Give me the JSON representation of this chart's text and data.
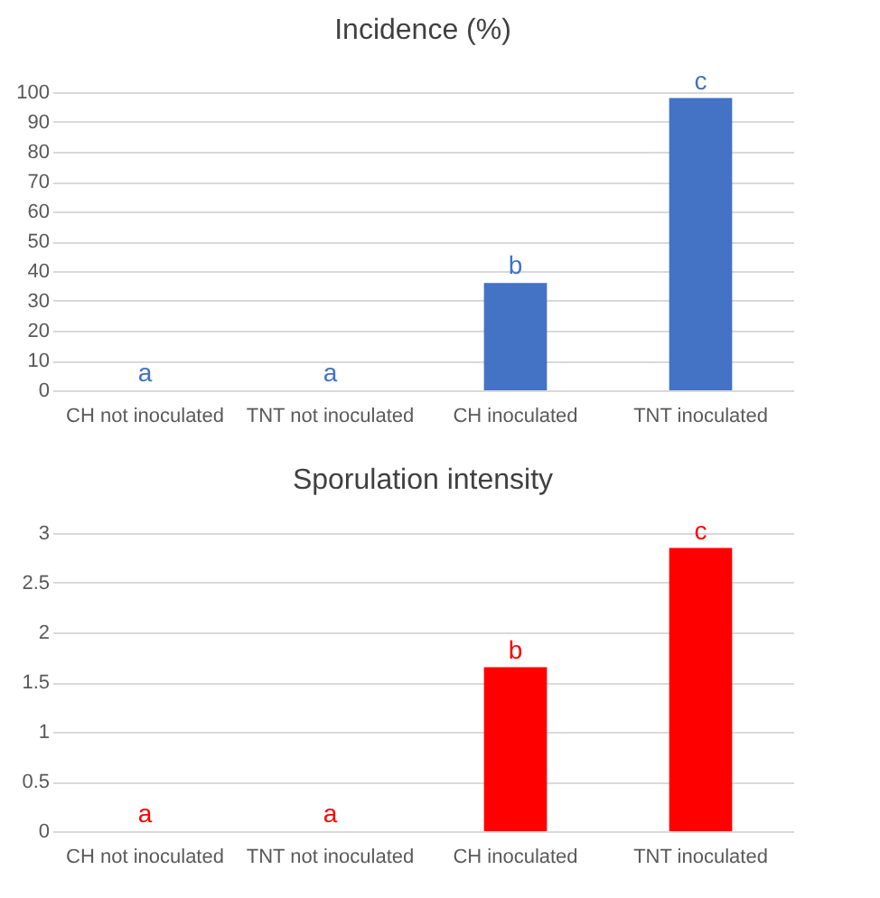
{
  "chart_data": [
    {
      "type": "bar",
      "title": "Incidence (%)",
      "categories": [
        "CH not inoculated",
        "TNT not inoculated",
        "CH inoculated",
        "TNT inoculated"
      ],
      "values": [
        0,
        0,
        36,
        98
      ],
      "color": "#4472c4",
      "ylim": [
        0,
        100
      ],
      "yticks": [
        0,
        10,
        20,
        30,
        40,
        50,
        60,
        70,
        80,
        90,
        100
      ],
      "grid": "y",
      "annotations": [
        {
          "text": "a",
          "x": "CH not inoculated",
          "y": 0
        },
        {
          "text": "a",
          "x": "TNT not inoculated",
          "y": 0
        },
        {
          "text": "b",
          "x": "CH inoculated",
          "y": 36
        },
        {
          "text": "c",
          "x": "TNT inoculated",
          "y": 98
        }
      ]
    },
    {
      "type": "bar",
      "title": "Sporulation intensity",
      "categories": [
        "CH not inoculated",
        "TNT not inoculated",
        "CH inoculated",
        "TNT inoculated"
      ],
      "values": [
        0,
        0,
        1.65,
        2.85
      ],
      "color": "#ff0000",
      "ylim": [
        0,
        3
      ],
      "yticks": [
        0,
        0.5,
        1,
        1.5,
        2,
        2.5,
        3
      ],
      "grid": "y",
      "annotations": [
        {
          "text": "a",
          "x": "CH not inoculated",
          "y": 0
        },
        {
          "text": "a",
          "x": "TNT not inoculated",
          "y": 0
        },
        {
          "text": "b",
          "x": "CH inoculated",
          "y": 1.65
        },
        {
          "text": "c",
          "x": "TNT inoculated",
          "y": 2.85
        }
      ]
    }
  ]
}
